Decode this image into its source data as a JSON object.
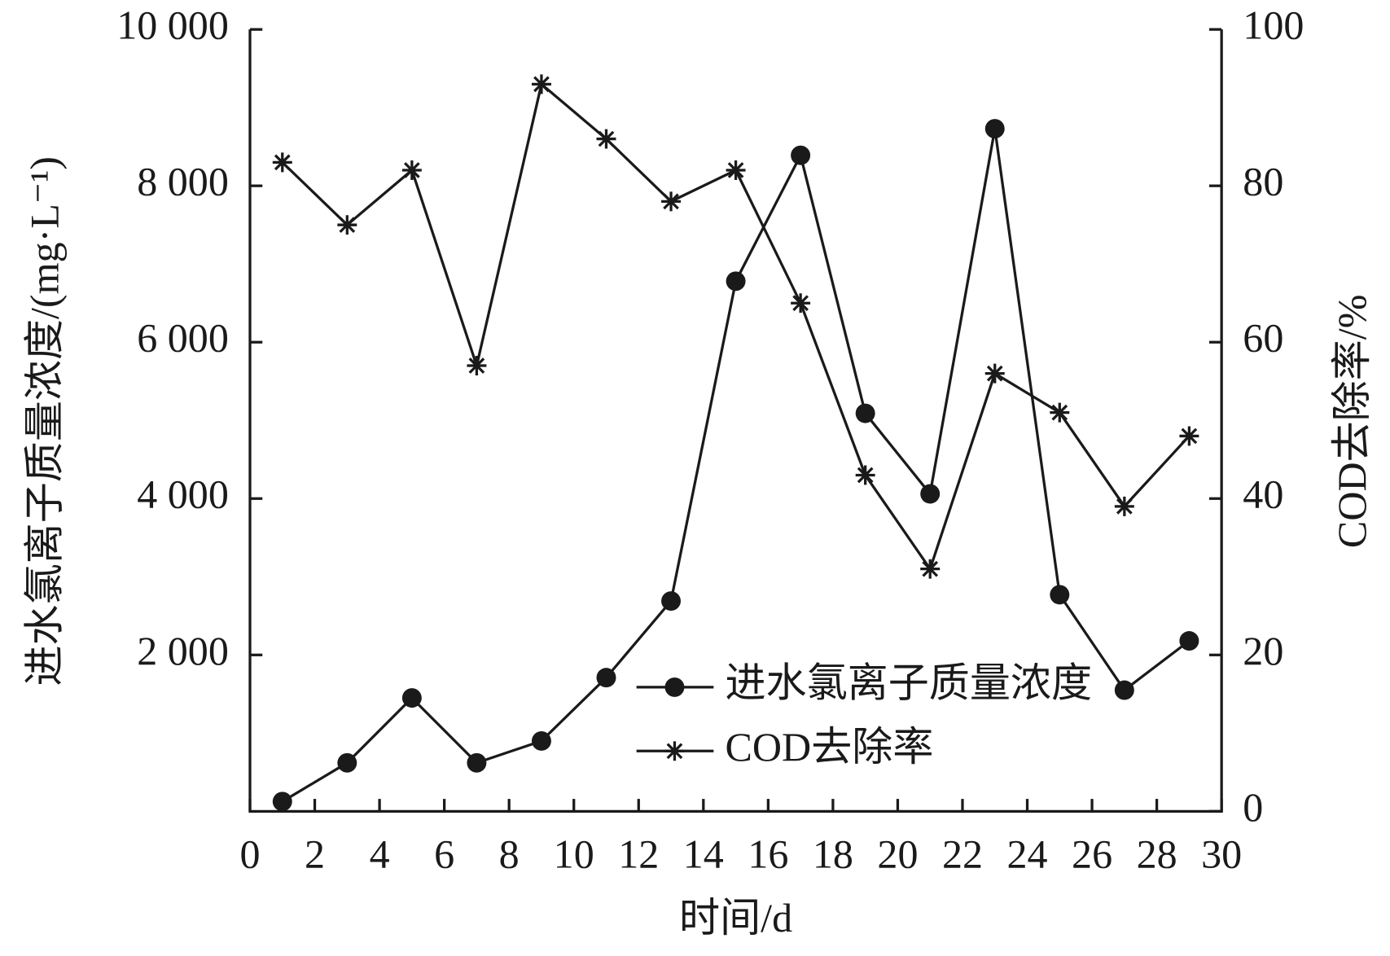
{
  "chart_data": {
    "type": "line",
    "x_label": "时间/d",
    "y_label": "进水氯离子质量浓度/(mg·L⁻¹)",
    "y2_label": "COD去除率/%",
    "x": [
      1,
      3,
      5,
      7,
      9,
      11,
      13,
      15,
      17,
      19,
      21,
      23,
      25,
      27,
      29
    ],
    "series": [
      {
        "name": "进水氯离子质量浓度",
        "color": "#1a1a1a",
        "marker": "circle",
        "values": [
          125,
          620,
          1450,
          620,
          900,
          1710,
          2690,
          6780,
          8390,
          5090,
          4060,
          8730,
          2770,
          1550,
          2180
        ]
      },
      {
        "name": "COD去除率",
        "color": "#1a1a1a",
        "marker": "asterisk",
        "axis": "y2",
        "values": [
          83,
          75,
          82,
          57,
          93,
          86,
          78,
          82,
          65,
          43,
          31,
          56,
          51,
          39,
          48
        ]
      }
    ],
    "xlim": [
      0,
      30
    ],
    "xticks": [
      0,
      2,
      4,
      6,
      8,
      10,
      12,
      14,
      16,
      18,
      20,
      22,
      24,
      26,
      28,
      30
    ],
    "ylim": [
      0,
      10000
    ],
    "yticks": [
      {
        "value": 2000,
        "label": "2 000"
      },
      {
        "value": 4000,
        "label": "4 000"
      },
      {
        "value": 6000,
        "label": "6 000"
      },
      {
        "value": 8000,
        "label": "8 000"
      },
      {
        "value": 10000,
        "label": "10 000"
      }
    ],
    "y2lim": [
      0,
      100
    ],
    "y2ticks": [
      0,
      20,
      40,
      60,
      80,
      100
    ],
    "legend": "lower-center"
  }
}
